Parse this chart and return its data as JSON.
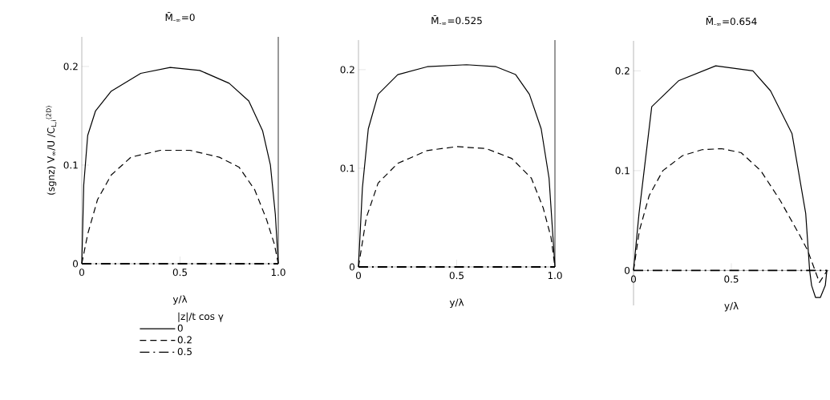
{
  "chart_data": [
    {
      "type": "line",
      "title": "M̄$_{-∞}$=0",
      "xlabel": "y/λ",
      "ylabel": "(sgnz) V$_{∞}$/U /C$_{L,i}$$^{(2D)}$",
      "legend_title": "|z|/t cos γ",
      "legend": "bottom left",
      "xlim": [
        0,
        1.0
      ],
      "ylim": [
        0,
        0.23
      ],
      "xticks": [
        0,
        0.5,
        {
          "value": 1.0,
          "label": "1.0"
        }
      ],
      "yticks": [
        0,
        0.1,
        0.2
      ],
      "ref_lines": [
        {
          "axis": "x",
          "value": 1.0
        }
      ],
      "series": [
        {
          "name": "0",
          "color": "#000000",
          "line_style": "solid",
          "x": [
            0,
            0.01,
            0.03,
            0.07,
            0.15,
            0.3,
            0.45,
            0.6,
            0.75,
            0.85,
            0.92,
            0.96,
            0.985,
            1.0
          ],
          "values": [
            0,
            0.08,
            0.13,
            0.155,
            0.175,
            0.193,
            0.199,
            0.196,
            0.183,
            0.165,
            0.135,
            0.1,
            0.05,
            0
          ]
        },
        {
          "name": "0.2",
          "color": "#000000",
          "line_style": "dashed",
          "x": [
            0,
            0.03,
            0.08,
            0.15,
            0.25,
            0.4,
            0.55,
            0.7,
            0.8,
            0.88,
            0.94,
            0.98,
            1.0
          ],
          "values": [
            0,
            0.03,
            0.065,
            0.09,
            0.108,
            0.115,
            0.115,
            0.108,
            0.098,
            0.075,
            0.045,
            0.02,
            0
          ]
        },
        {
          "name": "0.5",
          "color": "#000000",
          "line_style": "dashdot",
          "x": [
            0,
            1.0
          ],
          "values": [
            0,
            0
          ]
        }
      ]
    },
    {
      "type": "line",
      "title": "M̄$_{-∞}$=0.525",
      "xlabel": "y/λ",
      "xlim": [
        0,
        1.0
      ],
      "ylim": [
        0,
        0.23
      ],
      "xticks": [
        0,
        0.5,
        {
          "value": 1.0,
          "label": "1.0"
        }
      ],
      "yticks": [
        0,
        0.1,
        0.2
      ],
      "ref_lines": [
        {
          "axis": "x",
          "value": 1.0
        }
      ],
      "series": [
        {
          "color": "#000000",
          "line_style": "solid",
          "x": [
            0,
            0.02,
            0.05,
            0.1,
            0.2,
            0.35,
            0.55,
            0.7,
            0.8,
            0.87,
            0.93,
            0.97,
            1.0
          ],
          "values": [
            0,
            0.08,
            0.14,
            0.175,
            0.195,
            0.203,
            0.205,
            0.203,
            0.195,
            0.175,
            0.14,
            0.09,
            0
          ]
        },
        {
          "color": "#000000",
          "line_style": "dashed",
          "x": [
            0,
            0.04,
            0.1,
            0.2,
            0.35,
            0.5,
            0.65,
            0.78,
            0.88,
            0.94,
            0.98,
            1.0
          ],
          "values": [
            0,
            0.05,
            0.085,
            0.105,
            0.118,
            0.122,
            0.12,
            0.11,
            0.09,
            0.06,
            0.03,
            0
          ]
        },
        {
          "color": "#000000",
          "line_style": "dashdot",
          "x": [
            0,
            1.0
          ],
          "values": [
            0,
            0
          ]
        }
      ]
    },
    {
      "type": "line",
      "title": "M̄$_{-∞}$=0.654",
      "xlabel": "y/λ",
      "xlim": [
        0,
        1.0
      ],
      "ylim": [
        -0.035,
        0.23
      ],
      "xticks": [
        0,
        0.5
      ],
      "yticks": [
        0,
        0.1,
        0.2
      ],
      "series": [
        {
          "color": "#000000",
          "line_style": "solid",
          "x": [
            0,
            0.028,
            0.093,
            0.23,
            0.42,
            0.61,
            0.7,
            0.81,
            0.88,
            0.9,
            0.91,
            0.93,
            0.955,
            0.98,
            0.988
          ],
          "values": [
            0,
            0.057,
            0.164,
            0.19,
            0.205,
            0.2,
            0.18,
            0.137,
            0.057,
            0,
            -0.015,
            -0.027,
            -0.027,
            -0.015,
            0
          ]
        },
        {
          "color": "#000000",
          "line_style": "dashed",
          "x": [
            0,
            0.03,
            0.08,
            0.15,
            0.25,
            0.35,
            0.45,
            0.55,
            0.65,
            0.75,
            0.85,
            0.89,
            0.95,
            0.99
          ],
          "values": [
            0,
            0.04,
            0.075,
            0.1,
            0.115,
            0.121,
            0.122,
            0.118,
            0.1,
            0.07,
            0.035,
            0.02,
            -0.012,
            0
          ]
        },
        {
          "color": "#000000",
          "line_style": "dashdot",
          "x": [
            0,
            0.99
          ],
          "values": [
            0,
            0
          ]
        }
      ]
    }
  ]
}
